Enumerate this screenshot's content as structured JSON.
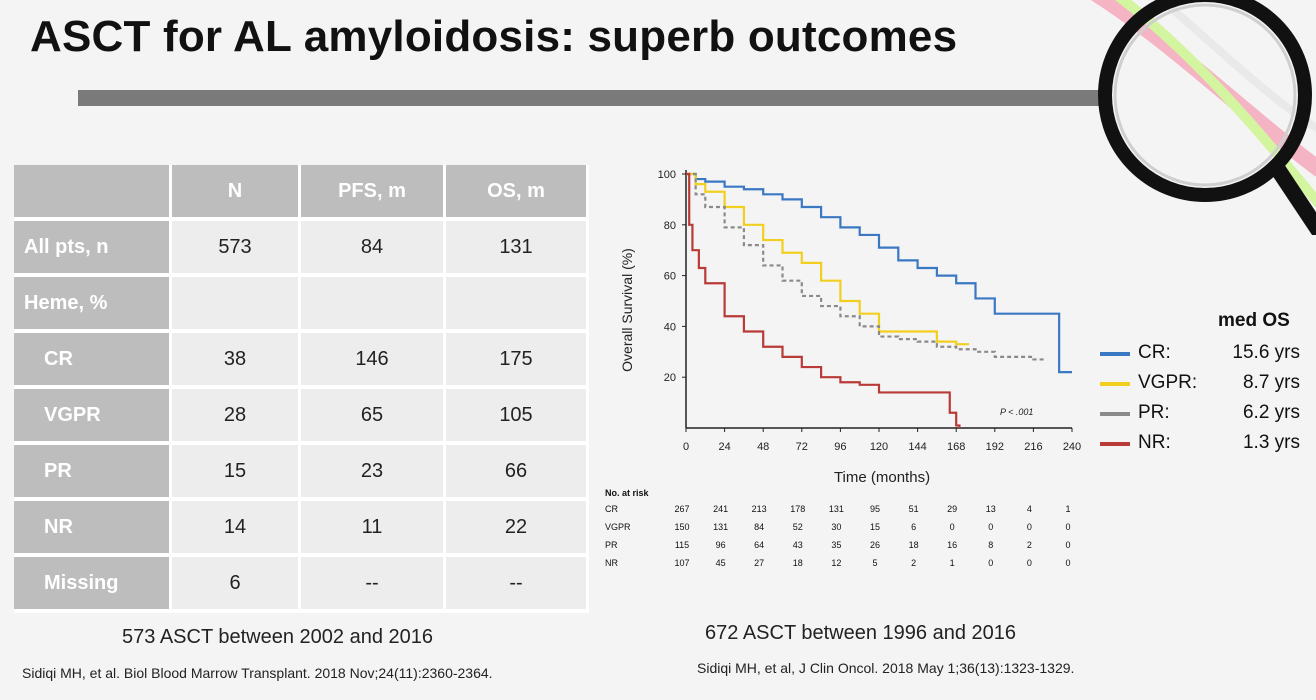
{
  "title": "ASCT for AL amyloidosis: superb outcomes",
  "table": {
    "headers": [
      "",
      "N",
      "PFS, m",
      "OS, m"
    ],
    "rows": [
      {
        "label": "All pts, n",
        "indent": false,
        "n": "573",
        "pfs": "84",
        "os": "131"
      },
      {
        "label": "Heme, %",
        "indent": false,
        "n": "",
        "pfs": "",
        "os": ""
      },
      {
        "label": "CR",
        "indent": true,
        "n": "38",
        "pfs": "146",
        "os": "175"
      },
      {
        "label": "VGPR",
        "indent": true,
        "n": "28",
        "pfs": "65",
        "os": "105"
      },
      {
        "label": "PR",
        "indent": true,
        "n": "15",
        "pfs": "23",
        "os": "66"
      },
      {
        "label": "NR",
        "indent": true,
        "n": "14",
        "pfs": "11",
        "os": "22"
      },
      {
        "label": "Missing",
        "indent": true,
        "n": "6",
        "pfs": "--",
        "os": "--"
      }
    ]
  },
  "left_caption": "573 ASCT between 2002 and 2016",
  "left_reference": "Sidiqi MH, et al. Biol Blood Marrow Transplant. 2018 Nov;24(11):2360-2364.",
  "right_caption": "672 ASCT between 1996 and 2016",
  "right_reference": "Sidiqi MH, et al, J Clin Oncol. 2018 May 1;36(13):1323-1329.",
  "chart_data": {
    "type": "line",
    "title": "",
    "xlabel": "Time (months)",
    "ylabel": "Overall Survival (%)",
    "xlim": [
      0,
      240
    ],
    "ylim": [
      0,
      100
    ],
    "xticks": [
      "0",
      "24",
      "48",
      "72",
      "96",
      "120",
      "144",
      "168",
      "192",
      "216",
      "240"
    ],
    "yticks": [
      "20",
      "40",
      "60",
      "80",
      "100"
    ],
    "annotation": "P < .001",
    "series": [
      {
        "name": "CR",
        "color": "#3b78c4",
        "dash": false,
        "x": [
          0,
          6,
          12,
          24,
          36,
          48,
          60,
          72,
          84,
          96,
          108,
          120,
          132,
          144,
          156,
          168,
          180,
          192,
          204,
          216,
          228,
          232,
          240
        ],
        "y": [
          100,
          98,
          97,
          95,
          94,
          92,
          90,
          87,
          83,
          79,
          76,
          71,
          66,
          63,
          60,
          57,
          51,
          45,
          45,
          45,
          45,
          22,
          22
        ]
      },
      {
        "name": "VGPR",
        "color": "#f2cf1f",
        "dash": false,
        "x": [
          0,
          6,
          12,
          24,
          36,
          48,
          60,
          72,
          84,
          96,
          108,
          120,
          132,
          144,
          156,
          168,
          176
        ],
        "y": [
          100,
          96,
          93,
          87,
          80,
          74,
          69,
          65,
          58,
          50,
          45,
          38,
          38,
          38,
          34,
          33,
          33
        ]
      },
      {
        "name": "PR",
        "color": "#8a8a8a",
        "dash": true,
        "x": [
          0,
          6,
          12,
          24,
          36,
          48,
          60,
          72,
          84,
          96,
          108,
          120,
          132,
          144,
          156,
          168,
          180,
          192,
          204,
          216,
          224
        ],
        "y": [
          100,
          92,
          87,
          79,
          72,
          64,
          58,
          52,
          48,
          44,
          40,
          36,
          35,
          34,
          32,
          31,
          30,
          28,
          28,
          27,
          27
        ]
      },
      {
        "name": "NR",
        "color": "#b83b38",
        "dash": false,
        "x": [
          0,
          2,
          4,
          8,
          12,
          24,
          36,
          48,
          60,
          72,
          84,
          96,
          108,
          120,
          132,
          144,
          156,
          164,
          168,
          170
        ],
        "y": [
          100,
          80,
          70,
          63,
          57,
          44,
          38,
          32,
          28,
          24,
          20,
          18,
          17,
          14,
          14,
          14,
          14,
          6,
          1,
          0
        ]
      }
    ],
    "risk_table": {
      "header": "No. at risk",
      "rows": [
        {
          "label": "CR",
          "values": [
            "267",
            "241",
            "213",
            "178",
            "131",
            "95",
            "51",
            "29",
            "13",
            "4",
            "1"
          ]
        },
        {
          "label": "VGPR",
          "values": [
            "150",
            "131",
            "84",
            "52",
            "30",
            "15",
            "6",
            "0",
            "0",
            "0",
            "0"
          ]
        },
        {
          "label": "PR",
          "values": [
            "115",
            "96",
            "64",
            "43",
            "35",
            "26",
            "18",
            "16",
            "8",
            "2",
            "0"
          ]
        },
        {
          "label": "NR",
          "values": [
            "107",
            "45",
            "27",
            "18",
            "12",
            "5",
            "2",
            "1",
            "0",
            "0",
            "0"
          ]
        }
      ]
    }
  },
  "legend": {
    "header": "med OS",
    "items": [
      {
        "label": "CR:",
        "value": "15.6 yrs",
        "color": "#3b78c4"
      },
      {
        "label": "VGPR:",
        "value": "8.7 yrs",
        "color": "#f2cf1f"
      },
      {
        "label": "PR:",
        "value": "6.2 yrs",
        "color": "#8a8a8a"
      },
      {
        "label": "NR:",
        "value": "1.3 yrs",
        "color": "#b83b38"
      }
    ]
  }
}
